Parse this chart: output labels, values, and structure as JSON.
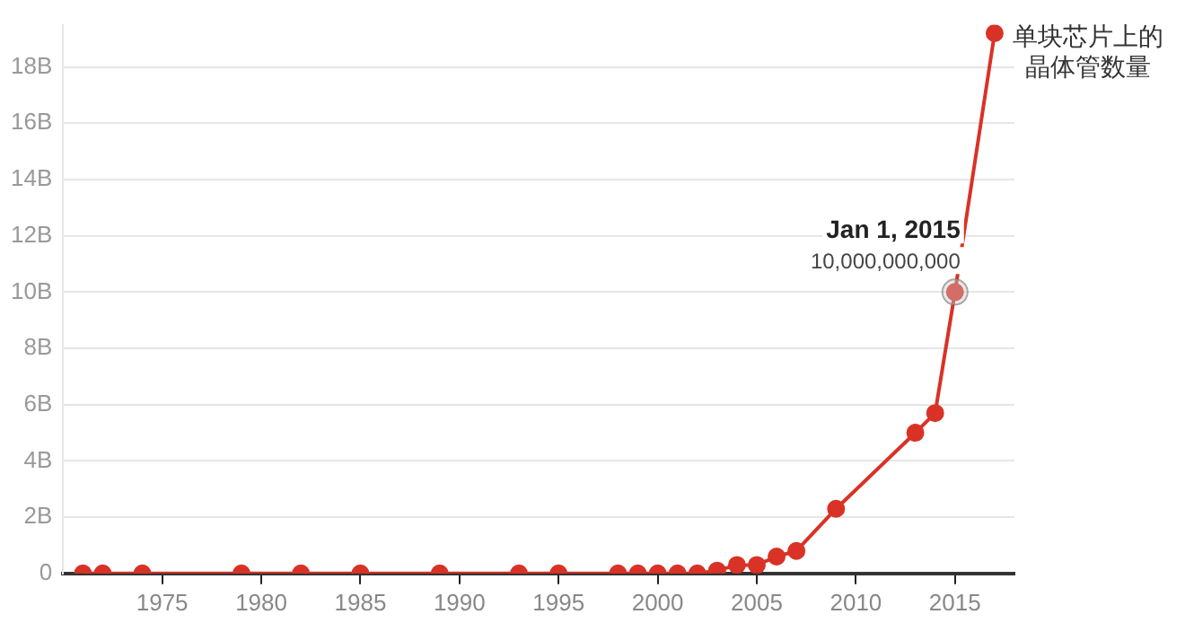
{
  "chart_data": {
    "type": "line",
    "marker": "circle",
    "line_style": "solid",
    "grid": "y",
    "legend": false,
    "x": [
      1971,
      1972,
      1974,
      1979,
      1982,
      1985,
      1989,
      1993,
      1995,
      1998,
      1999,
      2000,
      2001,
      2002,
      2003,
      2004,
      2005,
      2006,
      2007,
      2009,
      2013,
      2014,
      2015,
      2017
    ],
    "series": [
      {
        "name": "单块芯片上的晶体管数量",
        "color": "#d93226",
        "values": [
          0,
          0,
          0,
          0,
          0,
          0,
          0,
          0,
          0,
          0,
          0,
          0,
          0,
          0,
          0.1,
          0.3,
          0.3,
          0.6,
          0.8,
          2.3,
          5.0,
          5.7,
          10,
          19.2
        ]
      }
    ],
    "xlim": [
      1970,
      2018
    ],
    "xticks": [
      1975,
      1980,
      1985,
      1990,
      1995,
      2000,
      2005,
      2010,
      2015
    ],
    "ylim": [
      0,
      19.5
    ],
    "yticks": [
      0,
      {
        "value": 2,
        "label": "2B"
      },
      {
        "value": 4,
        "label": "4B"
      },
      {
        "value": 6,
        "label": "6B"
      },
      {
        "value": 8,
        "label": "8B"
      },
      {
        "value": 10,
        "label": "10B"
      },
      {
        "value": 12,
        "label": "12B"
      },
      {
        "value": 14,
        "label": "14B"
      },
      {
        "value": 16,
        "label": "16B"
      },
      {
        "value": 18,
        "label": "18B"
      }
    ],
    "annotations": [
      {
        "text": "Jan 1, 2015",
        "x": 2015,
        "y": 10
      },
      {
        "text": "10,000,000,000",
        "x": 2015,
        "y": 10
      }
    ]
  }
}
